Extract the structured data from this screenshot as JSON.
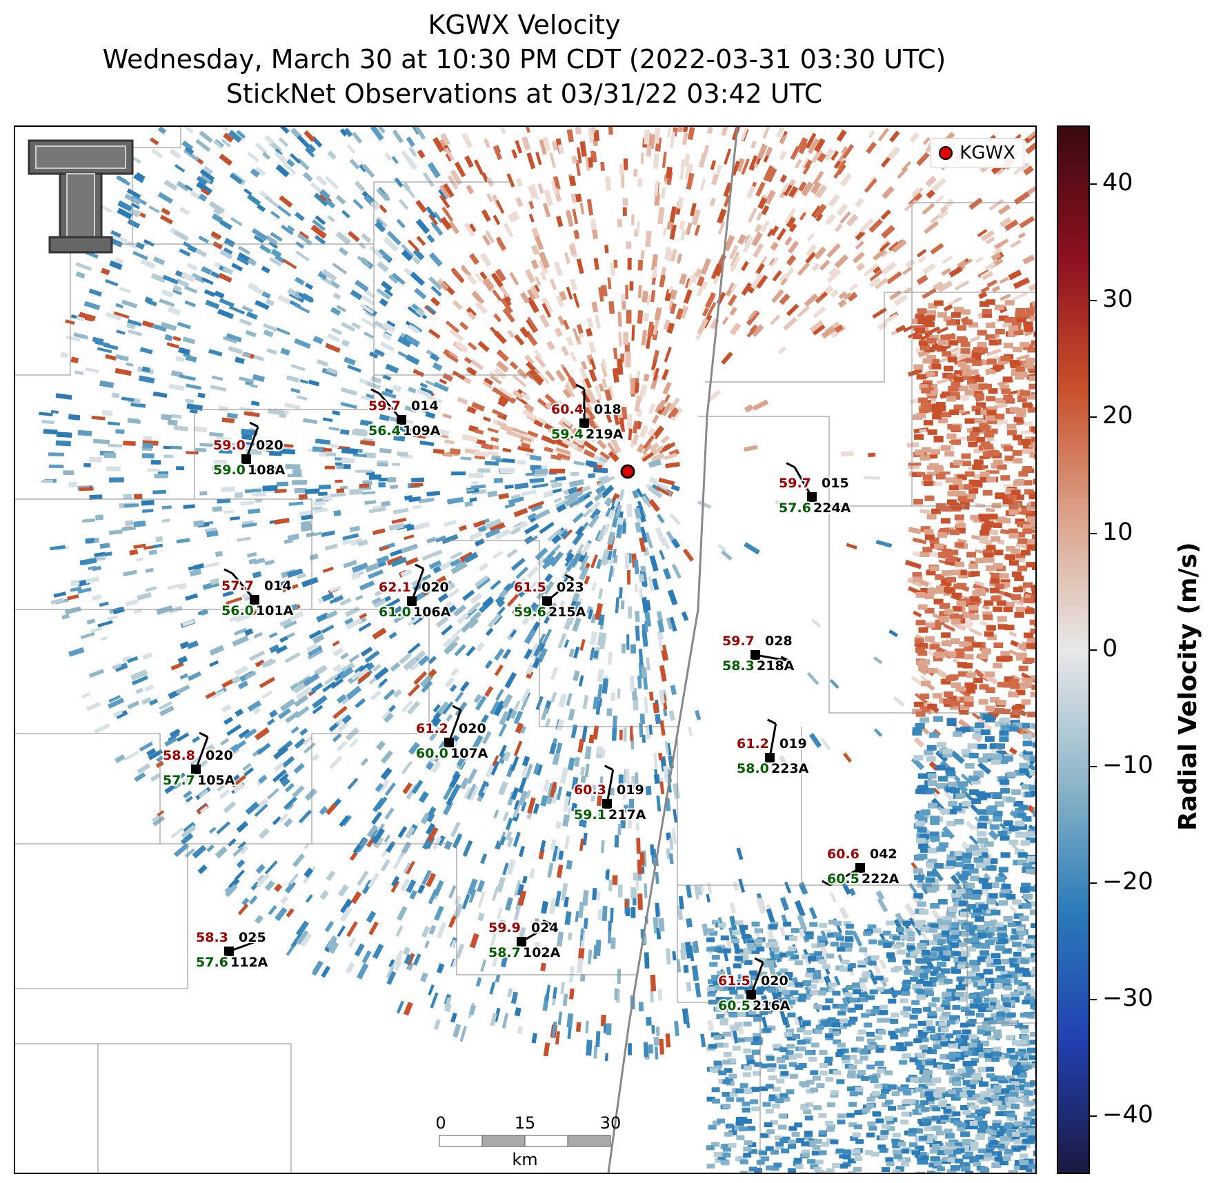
{
  "title": {
    "line1": "KGWX Velocity",
    "line2": "Wednesday, March 30 at 10:30 PM CDT (2022-03-31 03:30 UTC)",
    "line3": "StickNet Observations at 03/31/22 03:42 UTC"
  },
  "legend": {
    "label": "KGWX",
    "marker_color": "#e00000"
  },
  "colorbar": {
    "label": "Radial Velocity (m/s)",
    "ticks": [
      "40",
      "30",
      "20",
      "10",
      "0",
      "−10",
      "−20",
      "−30",
      "−40"
    ],
    "range": [
      -45,
      45
    ],
    "colors": [
      "#1a1a40",
      "#2140b0",
      "#2a7bb8",
      "#8fb7c9",
      "#e8e8e8",
      "#dca48c",
      "#c8502a",
      "#8c1020",
      "#3a0a10"
    ]
  },
  "scalebar": {
    "ticks": [
      "0",
      "15",
      "30"
    ],
    "unit": "km"
  },
  "logo": {
    "name": "texas-tech-logo"
  },
  "stations": [
    {
      "id": "108A",
      "temp": "59.0",
      "dew": "59.0",
      "dir": "020"
    },
    {
      "id": "109A",
      "temp": "59.7",
      "dew": "56.4",
      "dir": "014"
    },
    {
      "id": "219A",
      "temp": "60.4",
      "dew": "59.4",
      "dir": "018"
    },
    {
      "id": "224A",
      "temp": "59.7",
      "dew": "57.6",
      "dir": "015"
    },
    {
      "id": "101A",
      "temp": "57.7",
      "dew": "56.0",
      "dir": "014"
    },
    {
      "id": "106A",
      "temp": "62.1",
      "dew": "61.0",
      "dir": "020"
    },
    {
      "id": "215A",
      "temp": "61.5",
      "dew": "59.6",
      "dir": "023"
    },
    {
      "id": "218A",
      "temp": "59.7",
      "dew": "58.3",
      "dir": "028"
    },
    {
      "id": "107A",
      "temp": "61.2",
      "dew": "60.0",
      "dir": "020"
    },
    {
      "id": "105A",
      "temp": "58.8",
      "dew": "57.7",
      "dir": "020"
    },
    {
      "id": "223A",
      "temp": "61.2",
      "dew": "58.0",
      "dir": "019"
    },
    {
      "id": "217A",
      "temp": "60.3",
      "dew": "59.1",
      "dir": "019"
    },
    {
      "id": "222A",
      "temp": "60.6",
      "dew": "60.5",
      "dir": "042"
    },
    {
      "id": "102A",
      "temp": "59.9",
      "dew": "58.7",
      "dir": "024"
    },
    {
      "id": "112A",
      "temp": "58.3",
      "dew": "57.6",
      "dir": "025"
    },
    {
      "id": "216A",
      "temp": "61.5",
      "dew": "60.5",
      "dir": "020"
    }
  ]
}
